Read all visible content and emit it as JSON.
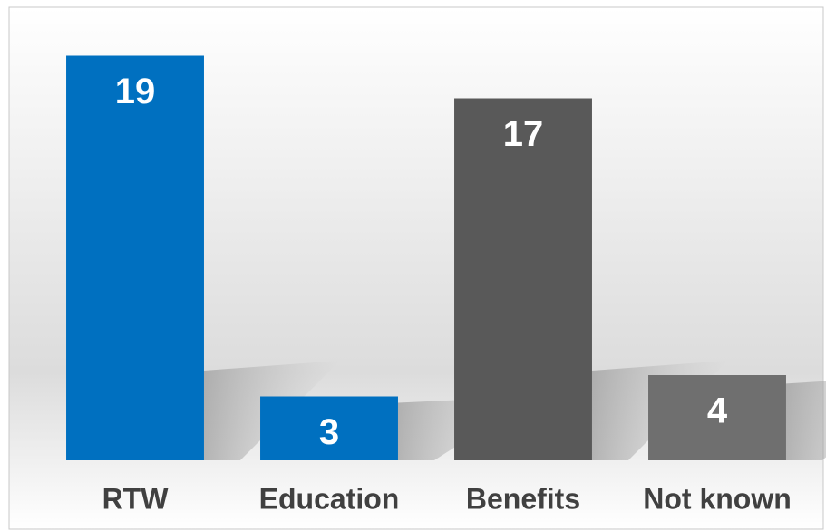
{
  "chart_data": {
    "type": "bar",
    "categories": [
      "RTW",
      "Education",
      "Benefits",
      "Not known"
    ],
    "values": [
      19,
      3,
      17,
      4
    ],
    "colors": [
      "#0070c0",
      "#0070c0",
      "#595959",
      "#6f6f6f"
    ],
    "ylim": [
      0,
      20
    ]
  }
}
